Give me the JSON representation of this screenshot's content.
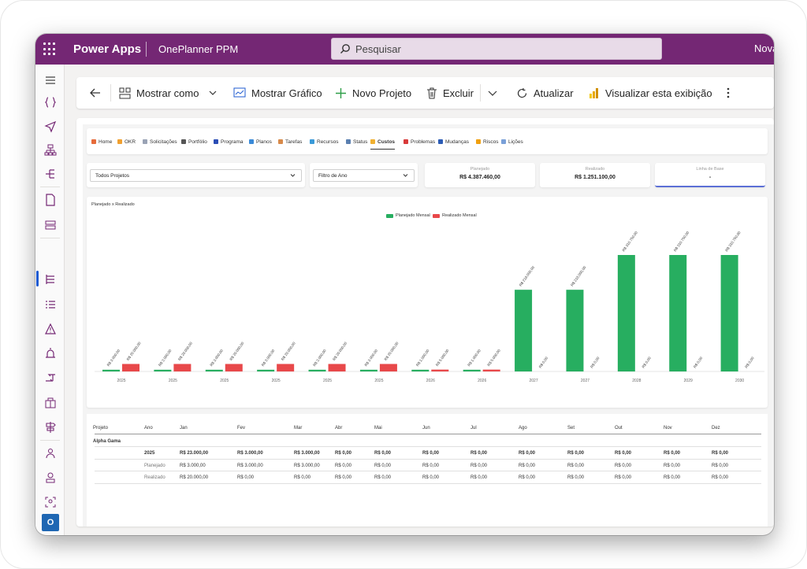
{
  "header": {
    "app_name": "Power Apps",
    "env_name": "OnePlanner PPM",
    "search_placeholder": "Pesquisar",
    "user_name": "Nova",
    "brand_color": "#742774"
  },
  "rail": {
    "icons": [
      "menu-icon",
      "braces-icon",
      "send-icon",
      "org-chart-icon",
      "flow-icon",
      "document-icon",
      "list-check-icon",
      "task-list-icon",
      "checklist-icon",
      "warning-icon",
      "alert-icon",
      "transfer-icon",
      "package-icon",
      "signpost-icon",
      "team-icon",
      "person-icon",
      "contact-icon",
      "island-icon"
    ],
    "avatar_initial": "O"
  },
  "commands": {
    "back": "back-arrow-icon",
    "show_as": "Mostrar como",
    "show_chart": "Mostrar Gráfico",
    "new_project": "Novo Projeto",
    "delete": "Excluir",
    "refresh": "Atualizar",
    "visualize": "Visualizar esta exibição"
  },
  "tabs": [
    {
      "label": "Home",
      "color": "#e66b3a"
    },
    {
      "label": "OKR",
      "color": "#f0a030"
    },
    {
      "label": "Solicitações",
      "color": "#9aa3b5"
    },
    {
      "label": "Portfólio",
      "color": "#555555"
    },
    {
      "label": "Programa",
      "color": "#2b4db5"
    },
    {
      "label": "Planos",
      "color": "#3a8ad8"
    },
    {
      "label": "Tarefas",
      "color": "#d88a4a"
    },
    {
      "label": "Recursos",
      "color": "#3a9ad8"
    },
    {
      "label": "Status",
      "color": "#5a7fb0"
    },
    {
      "label": "Custos",
      "color": "#f0b030"
    },
    {
      "label": "Problemas",
      "color": "#d83a3a"
    },
    {
      "label": "Mudanças",
      "color": "#2b5bb5"
    },
    {
      "label": "Riscos",
      "color": "#f0a010"
    },
    {
      "label": "Lições",
      "color": "#7aa0d8"
    }
  ],
  "active_tab": "Custos",
  "filters": {
    "project": "Todos Projetos",
    "year": "Filtro de Ano"
  },
  "kpis": [
    {
      "label": "Planejado",
      "value": "R$ 4.387.460,00"
    },
    {
      "label": "Realizado",
      "value": "R$ 1.251.100,00"
    },
    {
      "label": "Linha de Base",
      "value": "-"
    }
  ],
  "chart_data": {
    "type": "bar",
    "title": "Planejado x Realizado",
    "categories": [
      "2025",
      "2025",
      "2025",
      "2025",
      "2025",
      "2025",
      "2026",
      "2026",
      "2027",
      "2027",
      "2028",
      "2029",
      "2030"
    ],
    "series": [
      {
        "name": "Planejado Mensal",
        "color": "#27ae60",
        "values": [
          3000,
          3000,
          3000,
          3000,
          3000,
          3000,
          1000,
          1000,
          218000,
          218000,
          310750,
          310750,
          310750
        ],
        "labels": [
          "R$ 3.000,00",
          "R$ 3.000,00",
          "R$ 3.000,00",
          "R$ 3.000,00",
          "R$ 3.000,00",
          "R$ 3.000,00",
          "R$ 1.000,00",
          "R$ 1.000,00",
          "R$ 218.000,00",
          "R$ 218.000,00",
          "R$ 310.750,00",
          "R$ 310.750,00",
          "R$ 310.750,00"
        ]
      },
      {
        "name": "Realizado Mensal",
        "color": "#e8484a",
        "values": [
          20000,
          20000,
          20000,
          20000,
          20000,
          20000,
          5000,
          5000,
          0,
          0,
          0,
          0,
          0
        ],
        "labels": [
          "R$ 20.000,00",
          "R$ 20.000,00",
          "R$ 20.000,00",
          "R$ 20.000,00",
          "R$ 20.000,00",
          "R$ 20.000,00",
          "R$ 5.000,00",
          "R$ 5.000,00",
          "R$ 0,00",
          "R$ 0,00",
          "R$ 0,00",
          "R$ 0,00",
          "R$ 0,00"
        ]
      }
    ],
    "legend_position": "top-center"
  },
  "table": {
    "columns": [
      "Projeto",
      "Ano",
      "Jan",
      "Fev",
      "Mar",
      "Abr",
      "Mai",
      "Jun",
      "Jul",
      "Ago",
      "Set",
      "Out",
      "Nov",
      "Dez"
    ],
    "group": "Alpha Gama",
    "rows": [
      {
        "c": [
          "",
          "2025",
          "R$ 23.000,00",
          "R$ 3.000,00",
          "R$ 3.000,00",
          "R$ 0,00",
          "R$ 0,00",
          "R$ 0,00",
          "R$ 0,00",
          "R$ 0,00",
          "R$ 0,00",
          "R$ 0,00",
          "R$ 0,00",
          "R$ 0,00"
        ],
        "bold": true
      },
      {
        "c": [
          "",
          "Planejado",
          "R$ 3.000,00",
          "R$ 3.000,00",
          "R$ 3.000,00",
          "R$ 0,00",
          "R$ 0,00",
          "R$ 0,00",
          "R$ 0,00",
          "R$ 0,00",
          "R$ 0,00",
          "R$ 0,00",
          "R$ 0,00",
          "R$ 0,00"
        ],
        "bold": false
      },
      {
        "c": [
          "",
          "Realizado",
          "R$ 20.000,00",
          "R$ 0,00",
          "R$ 0,00",
          "R$ 0,00",
          "R$ 0,00",
          "R$ 0,00",
          "R$ 0,00",
          "R$ 0,00",
          "R$ 0,00",
          "R$ 0,00",
          "R$ 0,00",
          "R$ 0,00"
        ],
        "bold": false
      }
    ]
  }
}
